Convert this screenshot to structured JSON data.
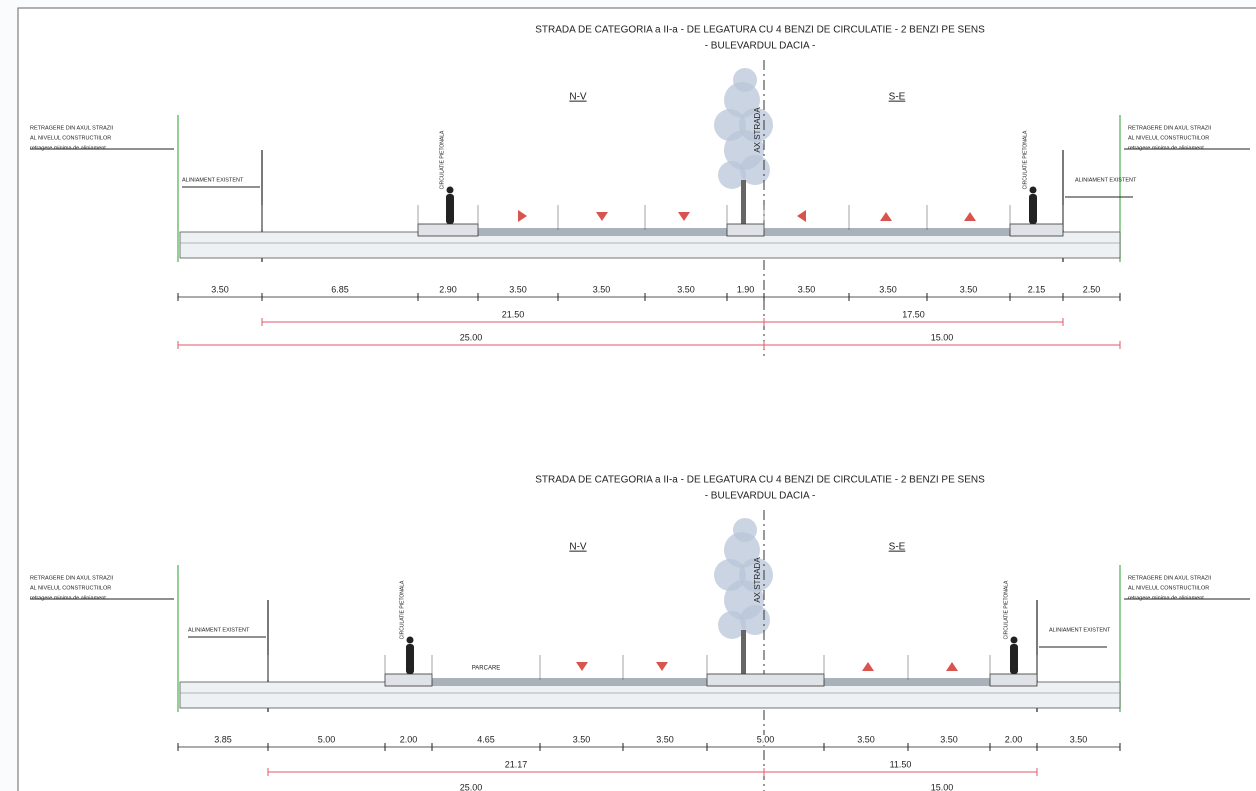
{
  "sections": [
    {
      "title": "STRADA DE CATEGORIA a II-a - DE LEGATURA CU 4 BENZI DE CIRCULATIE - 2 BENZI PE SENS",
      "subtitle": "- BULEVARDUL DACIA -",
      "left_direction": "N-V",
      "right_direction": "S-E",
      "axis_label": "AX STRADA",
      "left_note": [
        "RETRAGERE DIN AXUL STRAZII",
        "AL NIVELUL CONSTRUCTIILOR",
        "retragere minima de aliniament"
      ],
      "right_note": [
        "RETRAGERE DIN AXUL STRAZII",
        "AL NIVELUL CONSTRUCTIILOR",
        "retragere minima de aliniament"
      ],
      "left_alignment": "ALINIAMENT EXISTENT",
      "right_alignment": "ALINIAMENT EXISTENT",
      "left_sidewalk": "CIRCULATIE PIETONALA",
      "right_sidewalk": "CIRCULATIE PIETONALA",
      "dimensions": [
        "3.50",
        "6.85",
        "2.90",
        "3.50",
        "3.50",
        "3.50",
        "1.90",
        "3.50",
        "3.50",
        "3.50",
        "2.15",
        "2.50"
      ],
      "partial_dimensions": [
        "21.50",
        "17.50"
      ],
      "total_dimensions": [
        "25.00",
        "15.00"
      ]
    },
    {
      "title": "STRADA DE CATEGORIA a II-a - DE LEGATURA CU 4 BENZI DE CIRCULATIE - 2 BENZI PE SENS",
      "subtitle": "- BULEVARDUL DACIA -",
      "left_direction": "N-V",
      "right_direction": "S-E",
      "axis_label": "AX STRADA",
      "left_note": [
        "RETRAGERE DIN AXUL STRAZII",
        "AL NIVELUL CONSTRUCTIILOR",
        "retragere minima de aliniament"
      ],
      "right_note": [
        "RETRAGERE DIN AXUL STRAZII",
        "AL NIVELUL CONSTRUCTIILOR",
        "retragere minima de aliniament"
      ],
      "left_alignment": "ALINIAMENT EXISTENT",
      "right_alignment": "ALINIAMENT EXISTENT",
      "left_sidewalk": "CIRCULATIE PIETONALA",
      "right_sidewalk": "CIRCULATIE PIETONALA",
      "parking_label": "PARCARE",
      "dimensions": [
        "3.85",
        "5.00",
        "2.00",
        "4.65",
        "3.50",
        "3.50",
        "5.00",
        "3.50",
        "3.50",
        "2.00",
        "3.50"
      ],
      "partial_dimensions": [
        "21.17",
        "11.50"
      ],
      "total_dimensions": [
        "25.00",
        "15.00"
      ]
    }
  ]
}
